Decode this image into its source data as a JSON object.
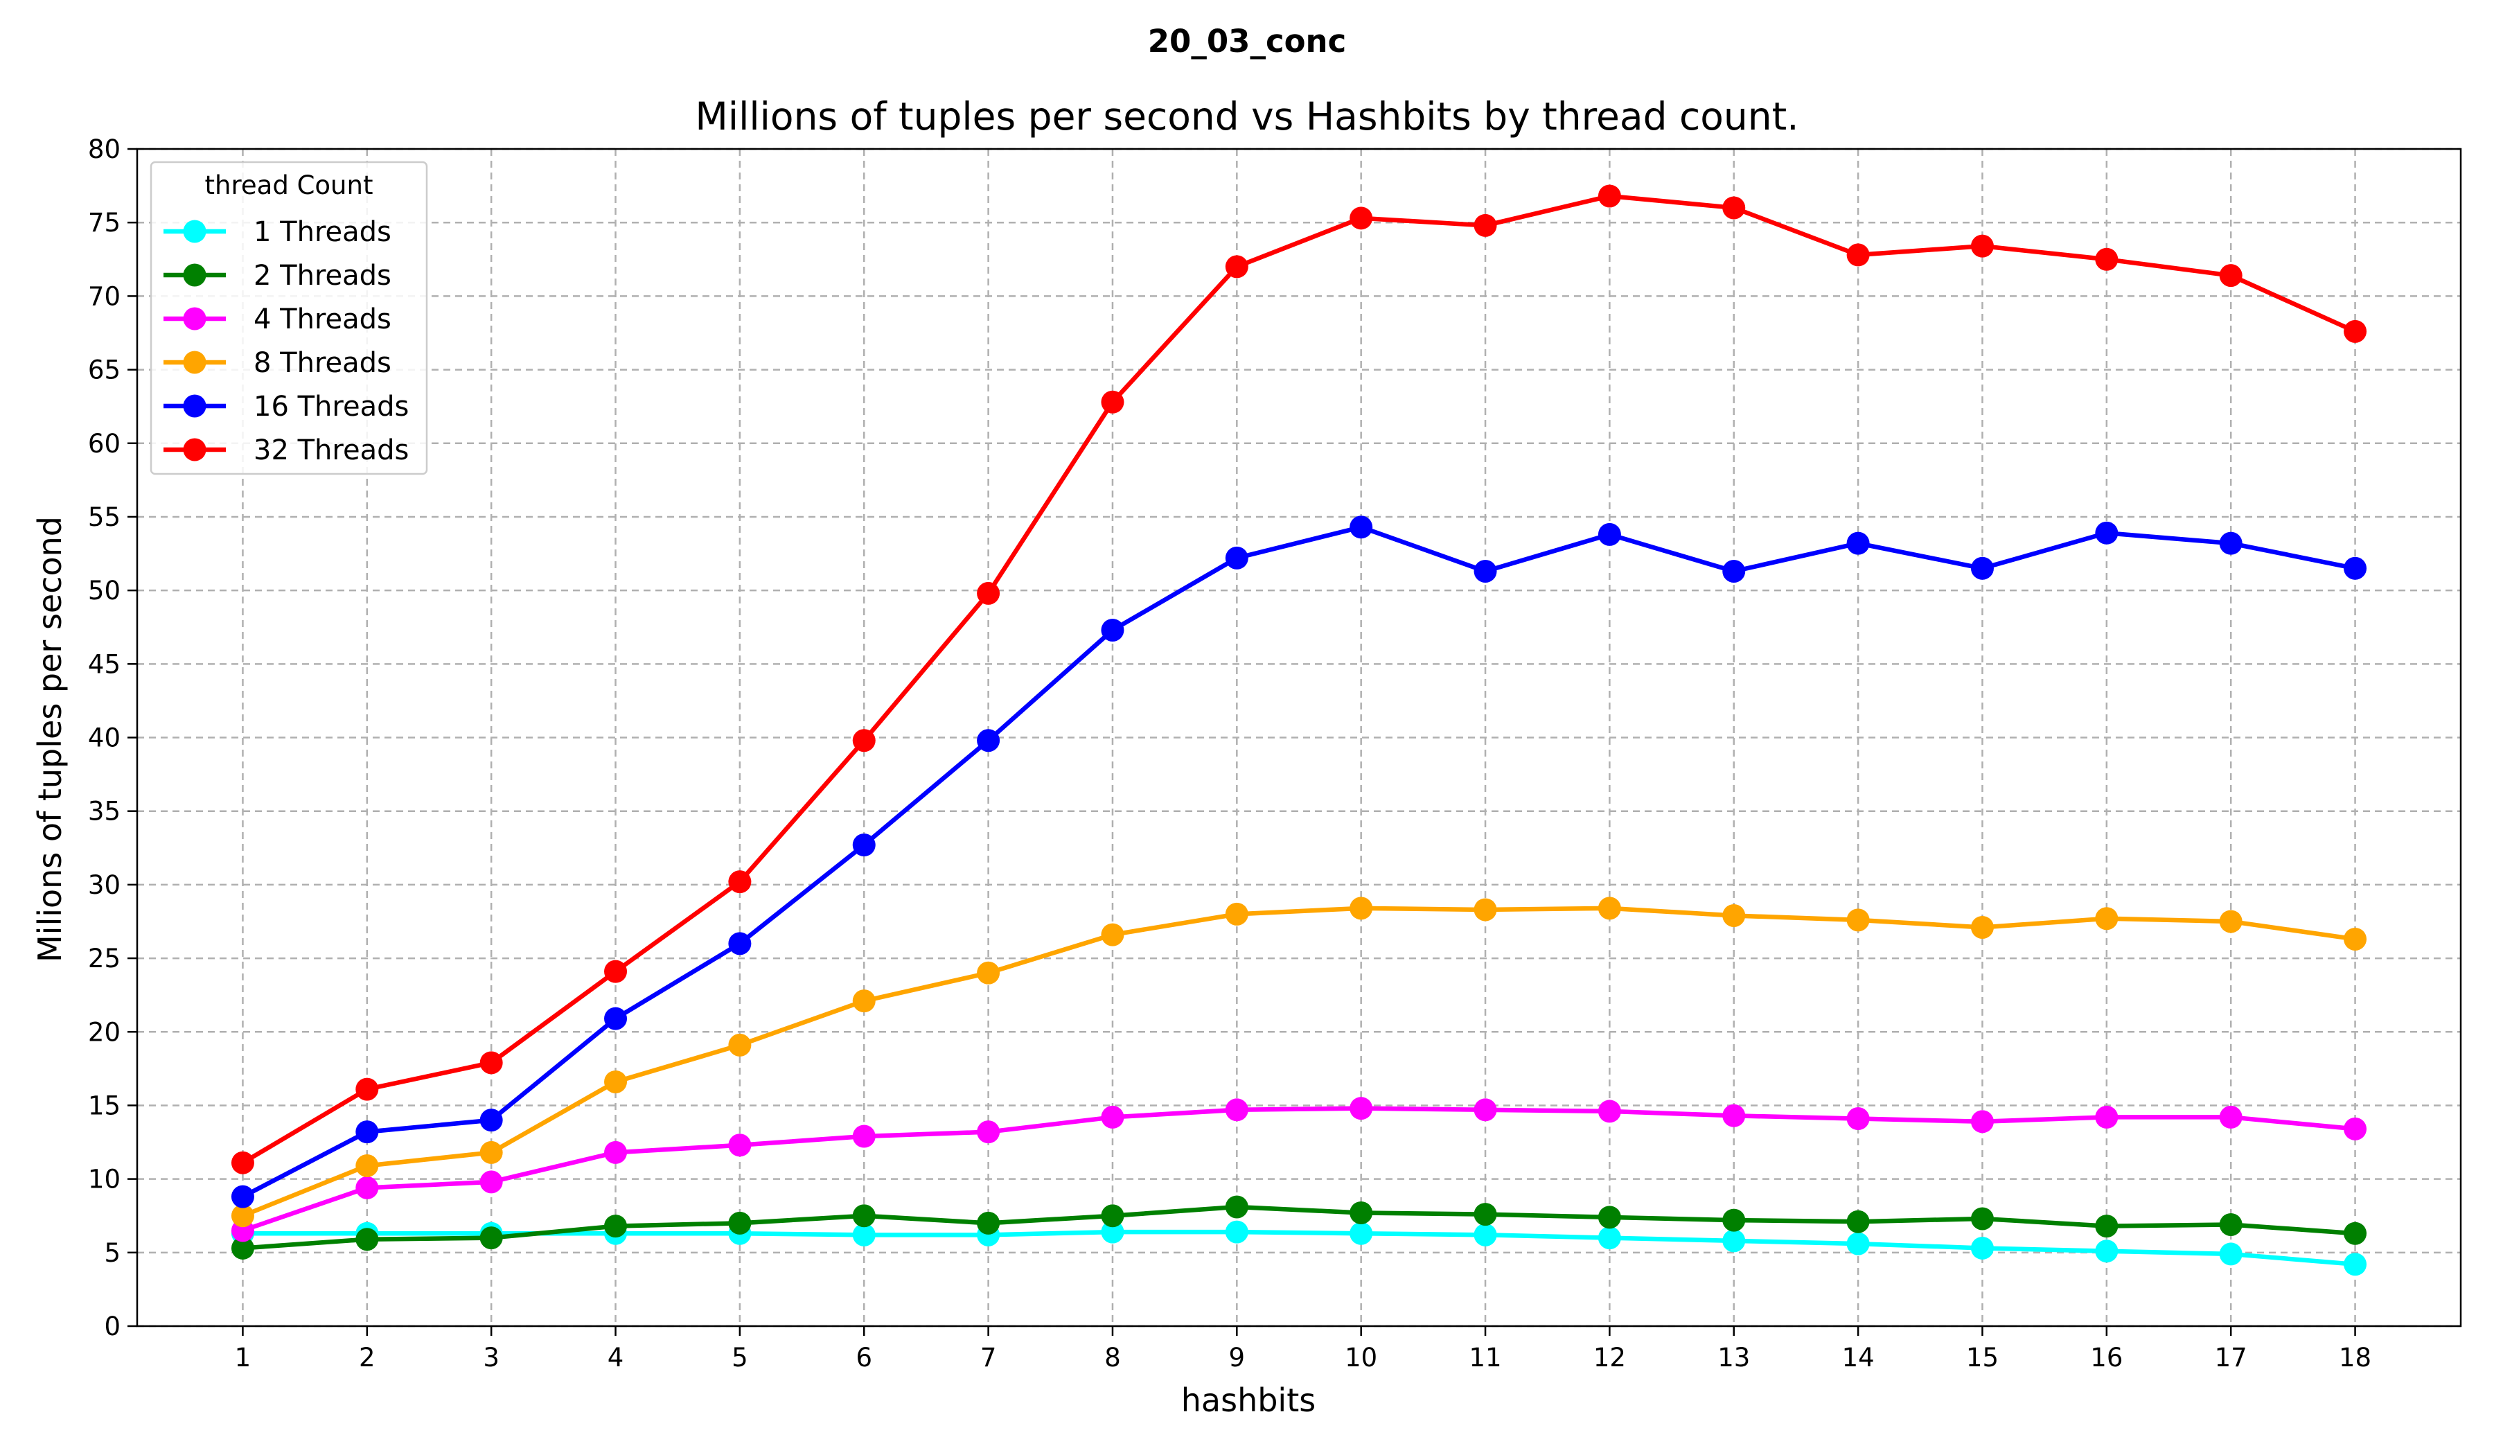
{
  "chart_data": {
    "type": "line",
    "suptitle": "20_03_conc",
    "title": "Millions of tuples per second vs Hashbits by thread count.",
    "xlabel": "hashbits",
    "ylabel": "Milions of tuples per second",
    "x": [
      1,
      2,
      3,
      4,
      5,
      6,
      7,
      8,
      9,
      10,
      11,
      12,
      13,
      14,
      15,
      16,
      17,
      18
    ],
    "xlim": [
      0.15,
      18.85
    ],
    "ylim": [
      0,
      80
    ],
    "yticks": [
      0,
      5,
      10,
      15,
      20,
      25,
      30,
      35,
      40,
      45,
      50,
      55,
      60,
      65,
      70,
      75,
      80
    ],
    "grid": true,
    "legend": {
      "title": "thread Count",
      "placement": "top-left"
    },
    "series": [
      {
        "name": "1 Threads",
        "color": "#00ffff",
        "values": [
          6.3,
          6.3,
          6.3,
          6.3,
          6.3,
          6.2,
          6.2,
          6.4,
          6.4,
          6.3,
          6.2,
          6.0,
          5.8,
          5.6,
          5.3,
          5.1,
          4.9,
          4.2
        ]
      },
      {
        "name": "2 Threads",
        "color": "#008000",
        "values": [
          5.3,
          5.9,
          6.0,
          6.8,
          7.0,
          7.5,
          7.0,
          7.5,
          8.1,
          7.7,
          7.6,
          7.4,
          7.2,
          7.1,
          7.3,
          6.8,
          6.9,
          6.3
        ]
      },
      {
        "name": "4 Threads",
        "color": "#ff00ff",
        "values": [
          6.5,
          9.4,
          9.8,
          11.8,
          12.3,
          12.9,
          13.2,
          14.2,
          14.7,
          14.8,
          14.7,
          14.6,
          14.3,
          14.1,
          13.9,
          14.2,
          14.2,
          13.4
        ]
      },
      {
        "name": "8 Threads",
        "color": "#ffa500",
        "values": [
          7.5,
          10.9,
          11.8,
          16.6,
          19.1,
          22.1,
          24.0,
          26.6,
          28.0,
          28.4,
          28.3,
          28.4,
          27.9,
          27.6,
          27.1,
          27.7,
          27.5,
          26.3
        ]
      },
      {
        "name": "16 Threads",
        "color": "#0000ff",
        "values": [
          8.8,
          13.2,
          14.0,
          20.9,
          26.0,
          32.7,
          39.8,
          47.3,
          52.2,
          54.3,
          51.3,
          53.8,
          51.3,
          53.2,
          51.5,
          53.9,
          53.2,
          51.5
        ]
      },
      {
        "name": "32 Threads",
        "color": "#ff0000",
        "values": [
          11.1,
          16.1,
          17.9,
          24.1,
          30.2,
          39.8,
          49.8,
          62.8,
          72.0,
          75.3,
          74.8,
          76.8,
          76.0,
          72.8,
          73.4,
          72.5,
          71.4,
          67.6
        ]
      }
    ]
  }
}
